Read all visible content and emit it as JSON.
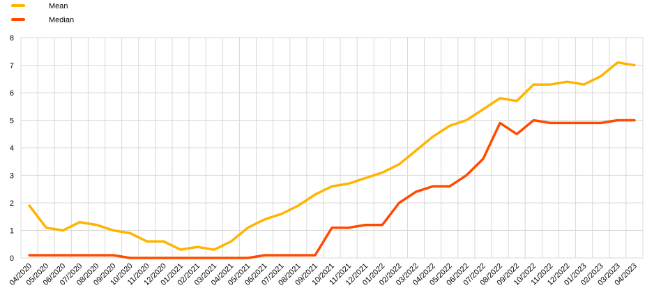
{
  "chart_data": {
    "type": "line",
    "title": "",
    "xlabel": "",
    "ylabel": "",
    "ylim": [
      0,
      8
    ],
    "yticks": [
      "0",
      "1",
      "2",
      "3",
      "4",
      "5",
      "6",
      "7",
      "8"
    ],
    "grid": true,
    "legend_position": "top-left",
    "categories": [
      "04/2020",
      "05/2020",
      "06/2020",
      "07/2020",
      "08/2020",
      "09/2020",
      "10/2020",
      "11/2020",
      "12/2020",
      "01/2021",
      "02/2021",
      "03/2021",
      "04/2021",
      "05/2021",
      "06/2021",
      "07/2021",
      "08/2021",
      "09/2021",
      "10/2021",
      "11/2021",
      "12/2021",
      "01/2022",
      "02/2022",
      "03/2022",
      "04/2022",
      "05/2022",
      "06/2022",
      "07/2022",
      "08/2022",
      "09/2022",
      "10/2022",
      "11/2022",
      "12/2022",
      "01/2023",
      "02/2023",
      "03/2023",
      "04/2023"
    ],
    "series": [
      {
        "name": "Mean",
        "color": "#FFB400",
        "values": [
          1.9,
          1.1,
          1.0,
          1.3,
          1.2,
          1.0,
          0.9,
          0.6,
          0.6,
          0.3,
          0.4,
          0.3,
          0.6,
          1.1,
          1.4,
          1.6,
          1.9,
          2.3,
          2.6,
          2.7,
          2.9,
          3.1,
          3.4,
          3.9,
          4.4,
          4.8,
          5.0,
          5.4,
          5.8,
          5.7,
          6.3,
          6.3,
          6.4,
          6.3,
          6.6,
          7.1,
          7.0
        ]
      },
      {
        "name": "Median",
        "color": "#FF4B00",
        "values": [
          0.1,
          0.1,
          0.1,
          0.1,
          0.1,
          0.1,
          0.0,
          0.0,
          0.0,
          0.0,
          0.0,
          0.0,
          0.0,
          0.0,
          0.1,
          0.1,
          0.1,
          0.1,
          1.1,
          1.1,
          1.2,
          1.2,
          2.0,
          2.4,
          2.6,
          2.6,
          3.0,
          3.6,
          4.9,
          4.5,
          5.0,
          4.9,
          4.9,
          4.9,
          4.9,
          5.0,
          5.0
        ]
      }
    ]
  }
}
